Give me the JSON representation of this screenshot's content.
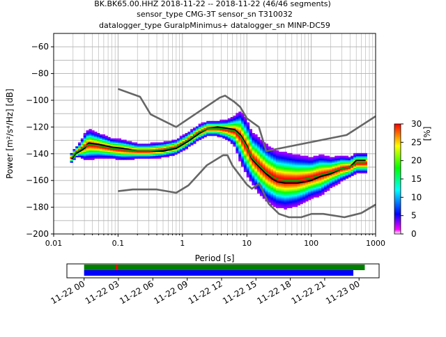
{
  "title_lines": [
    "BK.BK65.00.HHZ   2018-11-22 -- 2018-11-22  (46/46 segments)",
    "sensor_type CMG-3T sensor_sn T310032",
    "datalogger_type GuralpMinimus+ datalogger_sn MINP-DC59"
  ],
  "chart_data": [
    {
      "type": "heatmap",
      "title": "BK.BK65.00.HHZ   2018-11-22 -- 2018-11-22  (46/46 segments)",
      "xlabel": "Period [s]",
      "ylabel": "Power [m²/s⁴/Hz] [dB]",
      "xscale": "log",
      "xlim": [
        0.01,
        1000
      ],
      "ylim": [
        -200,
        -50
      ],
      "xticks": [
        "0.01",
        "0.1",
        "1",
        "10",
        "100",
        "1000"
      ],
      "yticks": [
        "−200",
        "−180",
        "−160",
        "−140",
        "−120",
        "−100",
        "−80",
        "−60"
      ],
      "grid": true,
      "colorbar": {
        "label": "[%]",
        "ticks": [
          "0",
          "5",
          "10",
          "15",
          "20",
          "25",
          "30"
        ],
        "range": [
          0,
          30
        ]
      },
      "series": [
        {
          "role": "mode",
          "color": "#000000",
          "x": [
            0.019,
            0.022,
            0.026,
            0.03,
            0.035,
            0.05,
            0.08,
            0.12,
            0.2,
            0.3,
            0.5,
            0.8,
            1.2,
            1.8,
            2.5,
            3.5,
            5,
            6.5,
            8,
            10,
            12,
            15,
            20,
            25,
            30,
            40,
            60,
            80,
            100,
            140,
            200,
            300,
            400,
            500,
            700
          ],
          "y": [
            -144,
            -140,
            -138,
            -136,
            -132,
            -133,
            -135,
            -136,
            -138,
            -138,
            -138,
            -136,
            -131,
            -125,
            -121,
            -120,
            -121,
            -122,
            -126,
            -134,
            -144,
            -149,
            -155,
            -159,
            -161,
            -162,
            -162,
            -161,
            -160,
            -157,
            -155,
            -151,
            -150,
            -145,
            -145
          ]
        },
        {
          "role": "mean",
          "color": "#00aa00",
          "x": [
            0.019,
            0.022,
            0.026,
            0.03,
            0.035,
            0.05,
            0.08,
            0.12,
            0.2,
            0.3,
            0.5,
            0.8,
            1.2,
            1.8,
            2.5,
            3.5,
            5,
            6.5,
            8,
            10,
            12,
            15,
            20,
            25,
            30,
            40,
            60,
            80,
            100,
            140,
            200,
            300,
            400,
            500,
            700
          ],
          "y": [
            -143,
            -139,
            -137,
            -135,
            -133,
            -134,
            -136,
            -137,
            -138,
            -138,
            -137,
            -135,
            -130,
            -124,
            -121,
            -121,
            -122,
            -123,
            -127,
            -135,
            -143,
            -148,
            -154,
            -157,
            -159,
            -160,
            -160,
            -159,
            -158,
            -156,
            -154,
            -151,
            -150,
            -147,
            -147
          ]
        },
        {
          "role": "noise-model-high",
          "color": "#666666",
          "x": [
            0.1,
            0.22,
            0.32,
            0.8,
            3.8,
            4.6,
            6.3,
            7.9,
            10,
            15.4,
            20,
            354.8,
            1000
          ],
          "y": [
            -91.5,
            -97.4,
            -110.5,
            -120,
            -98,
            -96.5,
            -101,
            -105,
            -113.5,
            -120,
            -138,
            -126,
            -112
          ]
        },
        {
          "role": "noise-model-low",
          "color": "#666666",
          "x": [
            0.1,
            0.17,
            0.4,
            0.8,
            1.24,
            2.4,
            4.3,
            5,
            6,
            10,
            12,
            15.6,
            21.9,
            31.6,
            45,
            70,
            101,
            154,
            328,
            600,
            1000
          ],
          "y": [
            -168,
            -166.7,
            -166.7,
            -169.2,
            -163.7,
            -148.6,
            -141.1,
            -141.1,
            -149,
            -163,
            -166.2,
            -162.1,
            -177.5,
            -185,
            -187.5,
            -187.5,
            -185,
            -185,
            -187.5,
            -184.4,
            -178
          ]
        }
      ],
      "density": {
        "x": [
          0.019,
          0.022,
          0.026,
          0.03,
          0.035,
          0.05,
          0.08,
          0.12,
          0.2,
          0.3,
          0.5,
          0.8,
          1.2,
          1.8,
          2.5,
          3.5,
          5,
          6.5,
          8,
          10,
          12,
          15,
          20,
          25,
          30,
          40,
          60,
          80,
          100,
          140,
          200,
          300,
          400,
          500,
          700
        ],
        "center": [
          -143,
          -139,
          -137,
          -135,
          -133,
          -134,
          -136,
          -137,
          -138,
          -138,
          -137,
          -135,
          -130,
          -124,
          -121,
          -121,
          -122,
          -123,
          -127,
          -135,
          -143,
          -148,
          -154,
          -157,
          -159,
          -160,
          -160,
          -159,
          -158,
          -156,
          -154,
          -151,
          -150,
          -147,
          -147
        ],
        "spread": [
          2,
          2,
          3,
          5,
          6,
          5,
          4,
          4,
          3,
          3,
          3,
          3,
          3,
          3,
          3,
          3,
          4,
          6,
          10,
          11,
          10,
          11,
          11,
          11,
          11,
          11,
          10,
          9,
          8,
          8,
          6,
          5,
          4,
          4,
          4
        ]
      }
    },
    {
      "type": "bar",
      "subtype": "data-availability-timeline",
      "xlim": [
        "2018-11-21T22:30",
        "2018-11-23T01:45"
      ],
      "xticks": [
        "11-22 00",
        "11-22 03",
        "11-22 06",
        "11-22 09",
        "11-22 12",
        "11-22 15",
        "11-22 18",
        "11-22 21",
        "11-23 00"
      ],
      "bars": [
        {
          "row": "upper",
          "start": "2018-11-22T00:00",
          "end": "2018-11-23T00:30",
          "color": "#008000"
        },
        {
          "row": "lower",
          "start": "2018-11-22T00:00",
          "end": "2018-11-22T23:30",
          "color": "#0000ff"
        }
      ],
      "markers": [
        {
          "time": "2018-11-22T02:50",
          "color": "#ff0000"
        }
      ]
    }
  ]
}
